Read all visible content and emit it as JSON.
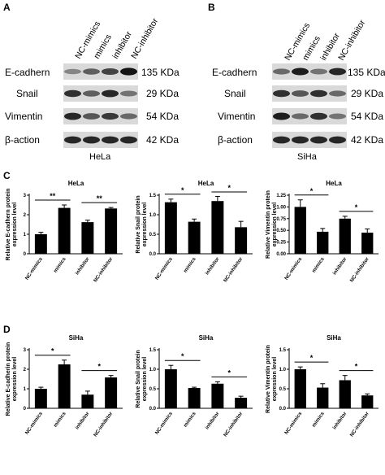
{
  "panels": {
    "A": {
      "letter": "A",
      "lanes": [
        "NC-mimics",
        "mimics",
        "inhibitor",
        "NC-inhibitor"
      ],
      "rows": [
        {
          "label": "E-cadhern",
          "kda": "135 KDa",
          "levels": [
            0.35,
            0.55,
            0.7,
            0.95
          ]
        },
        {
          "label": "Snail",
          "kda": "29 KDa",
          "levels": [
            0.8,
            0.55,
            0.85,
            0.45
          ]
        },
        {
          "label": "Vimentin",
          "kda": "54 KDa",
          "levels": [
            0.85,
            0.6,
            0.75,
            0.5
          ]
        },
        {
          "label": "β-action",
          "kda": "42 KDa",
          "levels": [
            0.85,
            0.85,
            0.85,
            0.85
          ]
        }
      ],
      "cell_line": "HeLa"
    },
    "B": {
      "letter": "B",
      "lanes": [
        "NC-mimics",
        "mimics",
        "inhibitor",
        "NC-inhibitor"
      ],
      "rows": [
        {
          "label": "E-cadhern",
          "kda": "135 KDa",
          "levels": [
            0.5,
            0.9,
            0.45,
            0.85
          ]
        },
        {
          "label": "Snail",
          "kda": "29 KDa",
          "levels": [
            0.8,
            0.6,
            0.8,
            0.5
          ]
        },
        {
          "label": "Vimentin",
          "kda": "54 KDa",
          "levels": [
            0.9,
            0.5,
            0.8,
            0.45
          ]
        },
        {
          "label": "β-action",
          "kda": "42 KDa",
          "levels": [
            0.85,
            0.85,
            0.85,
            0.85
          ]
        }
      ],
      "cell_line": "SiHa"
    },
    "C": {
      "letter": "C"
    },
    "D": {
      "letter": "D"
    }
  },
  "chart_data": [
    {
      "type": "bar",
      "panel": "C",
      "title": "HeLa",
      "ylabel": "Relative E-cadhern protein expression level",
      "categories": [
        "NC-mimics",
        "mimics",
        "inhibitor",
        "NC-inhibitor"
      ],
      "values": [
        1.0,
        2.35,
        1.62,
        2.32
      ],
      "errors": [
        0.1,
        0.15,
        0.1,
        0.05
      ],
      "ylim": [
        0,
        3
      ],
      "yticks": [
        "0",
        "1",
        "2",
        "3"
      ],
      "significance": [
        {
          "from": 0,
          "to": 1,
          "label": "**"
        },
        {
          "from": 2,
          "to": 3,
          "label": "**"
        }
      ]
    },
    {
      "type": "bar",
      "panel": "C",
      "title": "HeLa",
      "ylabel": "Relative Snail protein expression level",
      "categories": [
        "NC-mimics",
        "mimics",
        "inhibitor",
        "NC-inhibitor"
      ],
      "values": [
        1.32,
        0.82,
        1.35,
        0.68
      ],
      "errors": [
        0.08,
        0.07,
        0.12,
        0.15
      ],
      "ylim": [
        0,
        1.5
      ],
      "yticks": [
        "0.0",
        "0.5",
        "1.0",
        "1.5"
      ],
      "significance": [
        {
          "from": 0,
          "to": 1,
          "label": "*"
        },
        {
          "from": 2,
          "to": 3,
          "label": "*"
        }
      ]
    },
    {
      "type": "bar",
      "panel": "C",
      "title": "HeLa",
      "ylabel": "Relative Vimentin protein expression level",
      "categories": [
        "NC-mimics",
        "mimics",
        "inhibitor",
        "NC-inhibitor"
      ],
      "values": [
        1.0,
        0.47,
        0.75,
        0.45
      ],
      "errors": [
        0.15,
        0.07,
        0.05,
        0.08
      ],
      "ylim": [
        0,
        1.25
      ],
      "yticks": [
        "0.00",
        "0.25",
        "0.50",
        "0.75",
        "1.00",
        "1.25"
      ],
      "significance": [
        {
          "from": 0,
          "to": 1,
          "label": "*"
        },
        {
          "from": 2,
          "to": 3,
          "label": "*"
        }
      ]
    },
    {
      "type": "bar",
      "panel": "D",
      "title": "SiHa",
      "ylabel": "Relative E-cadherin protein expression level",
      "categories": [
        "NC-mimics",
        "mimics",
        "inhibitor",
        "NC-inhibitor"
      ],
      "values": [
        1.0,
        2.25,
        0.7,
        1.58
      ],
      "errors": [
        0.08,
        0.22,
        0.18,
        0.1
      ],
      "ylim": [
        0,
        3
      ],
      "yticks": [
        "0",
        "1",
        "2",
        "3"
      ],
      "significance": [
        {
          "from": 0,
          "to": 1,
          "label": "*"
        },
        {
          "from": 2,
          "to": 3,
          "label": "*"
        }
      ]
    },
    {
      "type": "bar",
      "panel": "D",
      "title": "SiHa",
      "ylabel": "Relative Snail protein expression level",
      "categories": [
        "NC-mimics",
        "mimics",
        "inhibitor",
        "NC-inhibitor"
      ],
      "values": [
        1.0,
        0.52,
        0.63,
        0.27
      ],
      "errors": [
        0.1,
        0.02,
        0.05,
        0.04
      ],
      "ylim": [
        0,
        1.5
      ],
      "yticks": [
        "0.0",
        "0.5",
        "1.0",
        "1.5"
      ],
      "significance": [
        {
          "from": 0,
          "to": 1,
          "label": "*"
        },
        {
          "from": 2,
          "to": 3,
          "label": "*"
        }
      ]
    },
    {
      "type": "bar",
      "panel": "D",
      "title": "SiHa",
      "ylabel": "Relative Vimentin protein expression level",
      "categories": [
        "NC-mimics",
        "mimics",
        "inhibitor",
        "NC-inhibitor"
      ],
      "values": [
        1.0,
        0.53,
        0.72,
        0.33
      ],
      "errors": [
        0.06,
        0.1,
        0.12,
        0.04
      ],
      "ylim": [
        0,
        1.5
      ],
      "yticks": [
        "0.0",
        "0.5",
        "1.0",
        "1.5"
      ],
      "significance": [
        {
          "from": 0,
          "to": 1,
          "label": "*"
        },
        {
          "from": 2,
          "to": 3,
          "label": "*"
        }
      ]
    }
  ]
}
